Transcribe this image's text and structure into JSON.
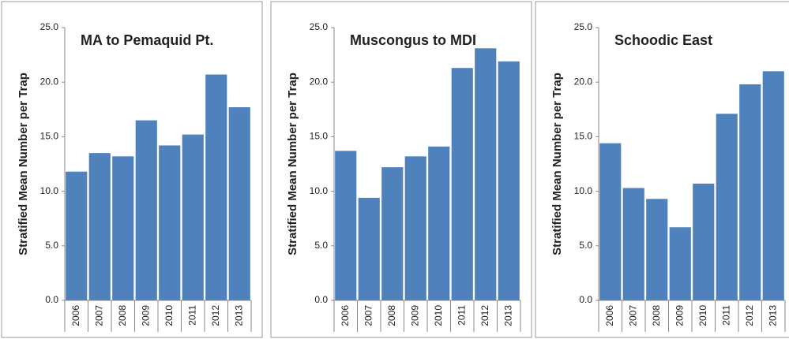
{
  "chart_data": [
    {
      "type": "bar",
      "title": "MA to Pemaquid Pt.",
      "y_label": "Stratified Mean Number per Trap",
      "categories": [
        "2006",
        "2007",
        "2008",
        "2009",
        "2010",
        "2011",
        "2012",
        "2013"
      ],
      "values": [
        11.8,
        13.5,
        13.2,
        16.5,
        14.2,
        15.2,
        20.7,
        17.7
      ],
      "color": "#4f81bd",
      "ylim": [
        0,
        25
      ],
      "yticks": [
        {
          "value": 0,
          "label": "0.0"
        },
        {
          "value": 5,
          "label": "5.0"
        },
        {
          "value": 10,
          "label": "10.0"
        },
        {
          "value": 15,
          "label": "15.0"
        },
        {
          "value": 20,
          "label": "20.0"
        },
        {
          "value": 25,
          "label": "25.0"
        }
      ]
    },
    {
      "type": "bar",
      "title": "Muscongus to MDI",
      "y_label": "Stratified Mean Number per Trap",
      "categories": [
        "2006",
        "2007",
        "2008",
        "2009",
        "2010",
        "2011",
        "2012",
        "2013"
      ],
      "values": [
        13.7,
        9.4,
        12.2,
        13.2,
        14.1,
        21.3,
        23.1,
        21.9
      ],
      "color": "#4f81bd",
      "ylim": [
        0,
        25
      ],
      "yticks": [
        {
          "value": 0,
          "label": "0.0"
        },
        {
          "value": 5,
          "label": "5.0"
        },
        {
          "value": 10,
          "label": "10.0"
        },
        {
          "value": 15,
          "label": "15.0"
        },
        {
          "value": 20,
          "label": "20.0"
        },
        {
          "value": 25,
          "label": "25.0"
        }
      ]
    },
    {
      "type": "bar",
      "title": "Schoodic East",
      "y_label": "Stratified Mean Number per Trap",
      "categories": [
        "2006",
        "2007",
        "2008",
        "2009",
        "2010",
        "2011",
        "2012",
        "2013"
      ],
      "values": [
        14.4,
        10.3,
        9.3,
        6.7,
        10.7,
        17.1,
        19.8,
        21.0
      ],
      "color": "#4f81bd",
      "ylim": [
        0,
        25
      ],
      "yticks": [
        {
          "value": 0,
          "label": "0.0"
        },
        {
          "value": 5,
          "label": "5.0"
        },
        {
          "value": 10,
          "label": "10.0"
        },
        {
          "value": 15,
          "label": "15.0"
        },
        {
          "value": 20,
          "label": "20.0"
        },
        {
          "value": 25,
          "label": "25.0"
        }
      ]
    }
  ]
}
